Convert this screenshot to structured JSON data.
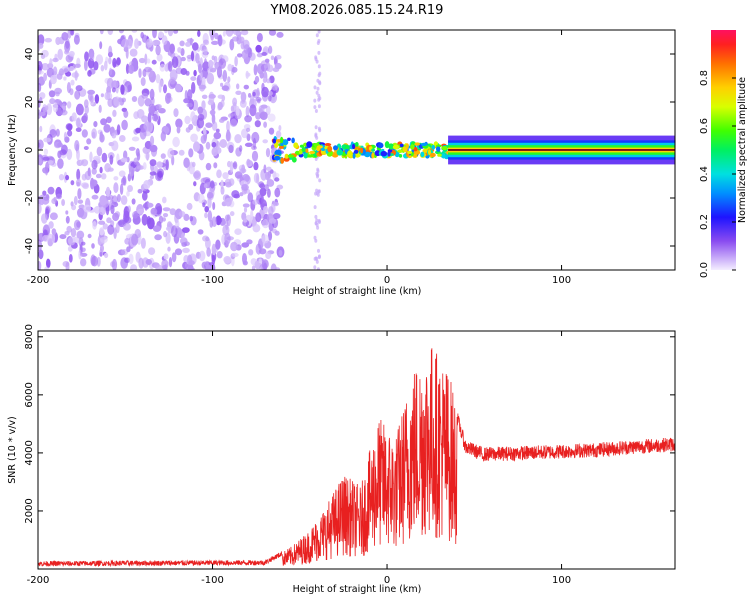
{
  "title": "YM08.2026.085.15.24.R19",
  "chart_data": [
    {
      "type": "heatmap",
      "name": "spectrogram",
      "xlabel": "Height of straight line (km)",
      "ylabel": "Frequency (Hz)",
      "xlim": [
        -200,
        165
      ],
      "ylim": [
        -50,
        50
      ],
      "xticks": [
        -200,
        -100,
        0,
        100
      ],
      "yticks": [
        -40,
        -20,
        0,
        20,
        40
      ],
      "colorbar": {
        "label": "Normalized spectral amplitude",
        "range": [
          0,
          1
        ],
        "ticks": [
          0.0,
          0.2,
          0.4,
          0.6,
          0.8
        ]
      },
      "regions": [
        {
          "from": -200,
          "to": -65,
          "description": "broadband noise",
          "frequency_spread": [
            -50,
            50
          ],
          "amplitude_range": [
            0.0,
            0.15
          ]
        },
        {
          "from": -65,
          "to": 35,
          "description": "scattered tone",
          "frequency_spread": [
            -6,
            6
          ],
          "amplitude_range": [
            0.2,
            0.9
          ]
        },
        {
          "from": 35,
          "to": 165,
          "description": "stable carrier",
          "frequency": 0,
          "amplitude": 0.95
        }
      ]
    },
    {
      "type": "line",
      "name": "snr",
      "xlabel": "Height of straight line (km)",
      "ylabel": "SNR (10 * v/v)",
      "xlim": [
        -200,
        165
      ],
      "ylim": [
        0,
        8200
      ],
      "xticks": [
        -200,
        -100,
        0,
        100
      ],
      "yticks": [
        2000,
        4000,
        6000,
        8000
      ],
      "color": "#e82020",
      "series": [
        {
          "name": "SNR",
          "x": [
            -200,
            -150,
            -100,
            -70,
            -55,
            -45,
            -35,
            -25,
            -15,
            -5,
            5,
            15,
            25,
            35,
            45,
            55,
            80,
            100,
            120,
            140,
            165
          ],
          "values": [
            180,
            200,
            210,
            220,
            700,
            1200,
            2000,
            3000,
            2600,
            4800,
            4200,
            6400,
            7200,
            6300,
            4200,
            3950,
            4000,
            4050,
            4100,
            4200,
            4300
          ]
        }
      ]
    }
  ]
}
